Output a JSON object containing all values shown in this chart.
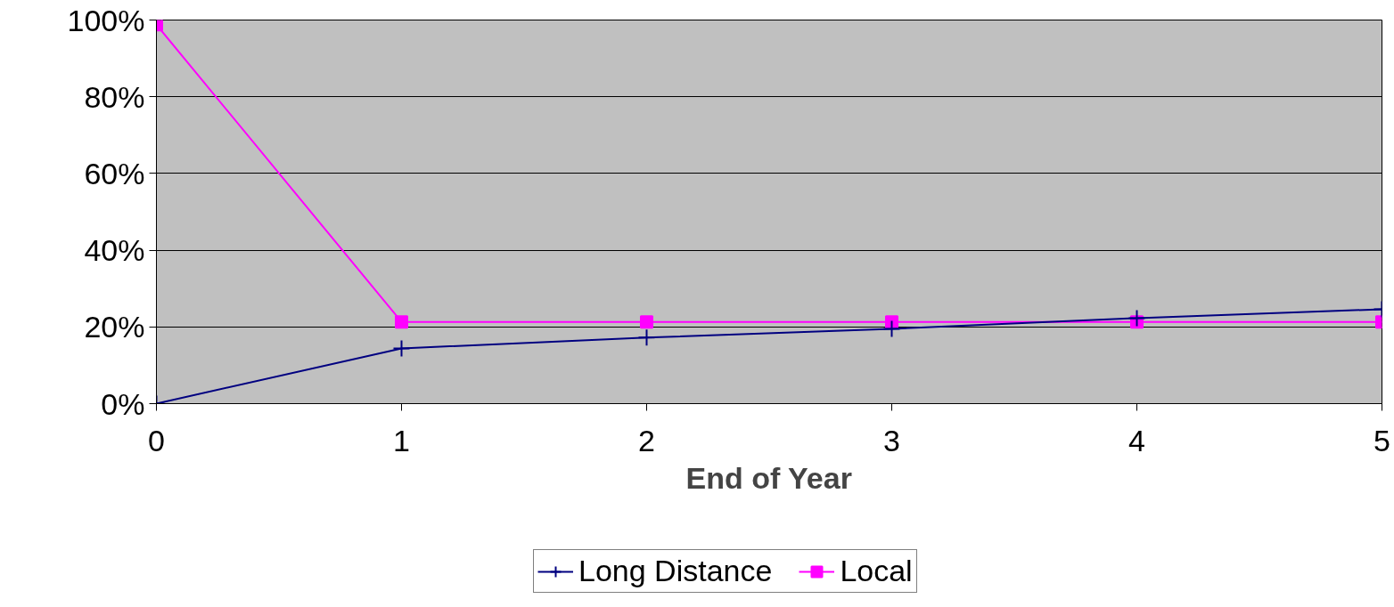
{
  "chart_data": {
    "type": "line",
    "xlabel": "End of Year",
    "x": [
      0,
      1,
      2,
      3,
      4,
      5
    ],
    "series": [
      {
        "name": "Long Distance",
        "color": "#000080",
        "marker": "cross",
        "values": [
          0,
          14.4,
          17.2,
          19.5,
          22.3,
          24.6
        ]
      },
      {
        "name": "Local",
        "color": "#ff00ff",
        "marker": "square",
        "values": [
          98.8,
          21.3,
          21.3,
          21.3,
          21.3,
          21.3
        ]
      }
    ],
    "xlim": [
      0,
      5
    ],
    "xticks": [
      0,
      1,
      2,
      3,
      4,
      5
    ],
    "ylim": [
      0,
      100
    ],
    "yticks": [
      {
        "value": 0,
        "label": "0%"
      },
      {
        "value": 20,
        "label": "20%"
      },
      {
        "value": 40,
        "label": "40%"
      },
      {
        "value": 60,
        "label": "60%"
      },
      {
        "value": 80,
        "label": "80%"
      },
      {
        "value": 100,
        "label": "100%"
      }
    ],
    "grid": "y",
    "legend": "bottom"
  }
}
